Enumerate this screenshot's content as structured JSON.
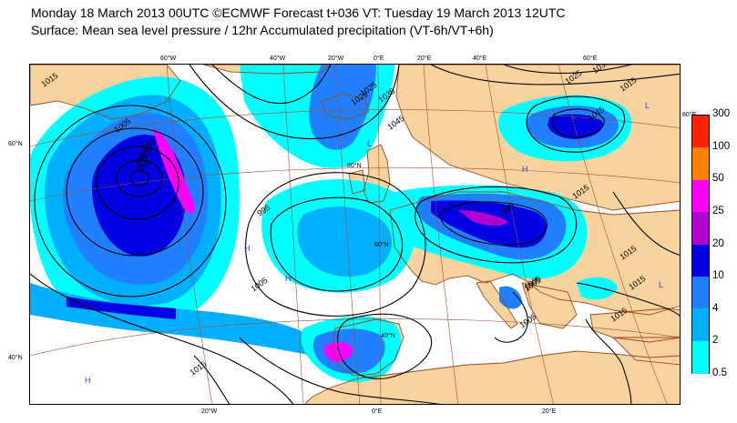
{
  "header": {
    "title_line1": "Monday 18 March 2013 00UTC ©ECMWF Forecast t+036 VT: Tuesday 19 March 2013 12UTC",
    "title_line2": "Surface: Mean sea level pressure / 12hr Accumulated precipitation (VT-6h/VT+6h)"
  },
  "map": {
    "colors": {
      "sea": "#ffffff",
      "land": "#f8d3a0",
      "coastline": "#9b4a1c",
      "graticule": "#a0522d",
      "isobar": "#000000"
    },
    "longitude_labels_top": [
      "60°W",
      "40°W",
      "20°W",
      "0°E",
      "20°E",
      "40°E",
      "60°E"
    ],
    "longitude_labels_bottom": [
      "20°W",
      "0°E",
      "20°E"
    ],
    "latitude_labels_left": [
      "60°N",
      "40°N"
    ],
    "latitude_labels_inner": [
      "80°N",
      "60°N",
      "40°N"
    ],
    "right_edge_label": "80°E",
    "isobar_labels": [
      "995",
      "1005",
      "1015",
      "1025",
      "1035",
      "1045",
      "985",
      "975",
      "965",
      "955",
      "1015",
      "1005",
      "995",
      "1005",
      "1015",
      "1015",
      "1015",
      "1005",
      "1015",
      "1025",
      "1035",
      "1015",
      "1005",
      "1015",
      "1025"
    ],
    "pressure_centres": [
      "H",
      "H",
      "H",
      "H",
      "L",
      "L",
      "L",
      "L"
    ]
  },
  "legend": {
    "title": "",
    "ticks": [
      "300",
      "100",
      "50",
      "25",
      "20",
      "10",
      "4",
      "2",
      "0.5"
    ],
    "colors": [
      "#ff2200",
      "#ff8000",
      "#ff00ff",
      "#b000d0",
      "#0000e0",
      "#2080ff",
      "#00b0ff",
      "#00ffff"
    ]
  }
}
